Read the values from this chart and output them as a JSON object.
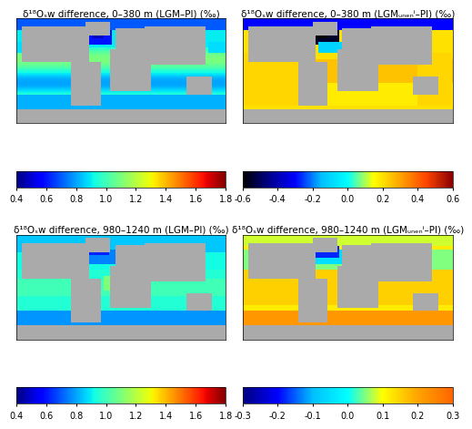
{
  "titles": [
    "δ¹⁸Oₛw difference, 0–380 m (LGM–PI) (‰)",
    "δ¹⁸Oₛw difference, 0–380 m (LGMᵤₙₑₙⁱ–PI) (‰)",
    "δ¹⁸Oₛw difference, 980–1240 m (LGM–PI) (‰)",
    "δ¹⁸Oₛw difference, 980–1240 m (LGMᵤₙₑₙⁱ–PI) (‰)"
  ],
  "clim_tl": [
    0.4,
    1.8
  ],
  "clim_tr": [
    -0.6,
    0.6
  ],
  "clim_bl": [
    0.4,
    1.8
  ],
  "clim_br": [
    -0.3,
    0.3
  ],
  "cbar_ticks_tl": [
    0.4,
    0.6,
    0.8,
    1.0,
    1.2,
    1.4,
    1.6,
    1.8
  ],
  "cbar_ticks_tr": [
    -0.6,
    -0.4,
    -0.2,
    0.0,
    0.2,
    0.4,
    0.6
  ],
  "cbar_ticks_bl": [
    0.4,
    0.6,
    0.8,
    1.0,
    1.2,
    1.4,
    1.6,
    1.8
  ],
  "cbar_ticks_br": [
    -0.3,
    -0.2,
    -0.1,
    0.0,
    0.1,
    0.2,
    0.3
  ],
  "land_color": "#aaaaaa",
  "background_color": "#ffffff",
  "title_fontsize": 7.5,
  "cbar_fontsize": 7
}
